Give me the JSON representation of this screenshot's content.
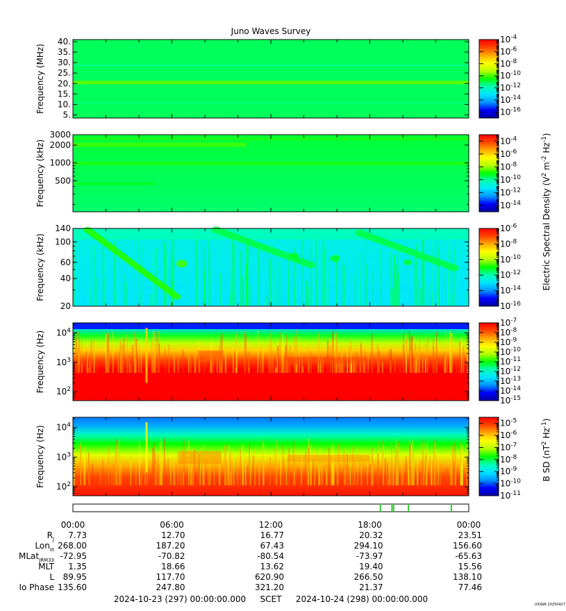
{
  "chart_data": {
    "type": "heatmap",
    "title": "Juno Waves Survey",
    "credit": "UIOWA 20250427",
    "time_range": {
      "start": "2024-10-23 (297) 00:00:00.000",
      "end": "2024-10-24 (298) 00:00:00.000",
      "scet_label": "SCET",
      "ticks": [
        "00:00",
        "06:00",
        "12:00",
        "18:00",
        "00:00"
      ]
    },
    "palette": [
      "#0000a0",
      "#0000ff",
      "#0096ff",
      "#00e6ff",
      "#00ffb4",
      "#00ff00",
      "#b4ff00",
      "#ffff00",
      "#ffaa00",
      "#ff4600",
      "#ff0000"
    ],
    "panels": [
      {
        "id": "p1",
        "ylabel": "Frequency (MHz)",
        "yscale": "linear",
        "ylim": [
          3.5,
          41
        ],
        "yticks": [
          {
            "label": "40.",
            "value": 40
          },
          {
            "label": "35.",
            "value": 35
          },
          {
            "label": "30.",
            "value": 30
          },
          {
            "label": "25.",
            "value": 25
          },
          {
            "label": "20.",
            "value": 20
          },
          {
            "label": "15.",
            "value": 15
          },
          {
            "label": "10.",
            "value": 10
          },
          {
            "label": "5.",
            "value": 5
          }
        ],
        "colorbar": {
          "min_exp": -17,
          "max_exp": -4,
          "ticks": [
            {
              "mant": "10",
              "exp": "-4",
              "e": -4
            },
            {
              "mant": "10",
              "exp": "-6",
              "e": -6
            },
            {
              "mant": "10",
              "exp": "-8",
              "e": -8
            },
            {
              "mant": "10",
              "exp": "-10",
              "e": -10
            },
            {
              "mant": "10",
              "exp": "-12",
              "e": -12
            },
            {
              "mant": "10",
              "exp": "-14",
              "e": -14
            },
            {
              "mant": "10",
              "exp": "-16",
              "e": -16
            }
          ]
        }
      },
      {
        "id": "p2",
        "ylabel": "Frequency (kHz)",
        "yscale": "log",
        "ylim": [
          150,
          3000
        ],
        "yticks": [
          {
            "label": "3000",
            "value": 3000
          },
          {
            "label": "2000",
            "value": 2000
          },
          {
            "label": "1000",
            "value": 1000
          },
          {
            "label": "500",
            "value": 500
          }
        ],
        "colorbar": {
          "min_exp": -15,
          "max_exp": -3,
          "ticks": [
            {
              "mant": "10",
              "exp": "-4",
              "e": -4
            },
            {
              "mant": "10",
              "exp": "-6",
              "e": -6
            },
            {
              "mant": "10",
              "exp": "-8",
              "e": -8
            },
            {
              "mant": "10",
              "exp": "-10",
              "e": -10
            },
            {
              "mant": "10",
              "exp": "-12",
              "e": -12
            },
            {
              "mant": "10",
              "exp": "-14",
              "e": -14
            }
          ]
        }
      },
      {
        "id": "p3",
        "ylabel": "Frequency (kHz)",
        "yscale": "log",
        "ylim": [
          20,
          140
        ],
        "yticks": [
          {
            "label": "140",
            "value": 140
          },
          {
            "label": "100",
            "value": 100
          },
          {
            "label": "60",
            "value": 60
          },
          {
            "label": "40",
            "value": 40
          },
          {
            "label": "20",
            "value": 20
          }
        ],
        "colorbar": {
          "min_exp": -16,
          "max_exp": -6,
          "ticks": [
            {
              "mant": "10",
              "exp": "-6",
              "e": -6
            },
            {
              "mant": "10",
              "exp": "-8",
              "e": -8
            },
            {
              "mant": "10",
              "exp": "-10",
              "e": -10
            },
            {
              "mant": "10",
              "exp": "-12",
              "e": -12
            },
            {
              "mant": "10",
              "exp": "-14",
              "e": -14
            },
            {
              "mant": "10",
              "exp": "-16",
              "e": -16
            }
          ]
        }
      },
      {
        "id": "p4",
        "ylabel": "Frequency (Hz)",
        "yscale": "log",
        "ylim": [
          50,
          22000
        ],
        "yticks": [
          {
            "mant": "10",
            "exp": "4",
            "value": 10000
          },
          {
            "mant": "10",
            "exp": "3",
            "value": 1000
          },
          {
            "mant": "10",
            "exp": "2",
            "value": 100
          }
        ],
        "colorbar": {
          "min_exp": -15,
          "max_exp": -7,
          "ticks": [
            {
              "mant": "10",
              "exp": "-7",
              "e": -7
            },
            {
              "mant": "10",
              "exp": "-8",
              "e": -8
            },
            {
              "mant": "10",
              "exp": "-9",
              "e": -9
            },
            {
              "mant": "10",
              "exp": "-10",
              "e": -10
            },
            {
              "mant": "10",
              "exp": "-11",
              "e": -11
            },
            {
              "mant": "10",
              "exp": "-12",
              "e": -12
            },
            {
              "mant": "10",
              "exp": "-13",
              "e": -13
            },
            {
              "mant": "10",
              "exp": "-14",
              "e": -14
            },
            {
              "mant": "10",
              "exp": "-15",
              "e": -15
            }
          ]
        }
      },
      {
        "id": "p5",
        "ylabel": "Frequency (Hz)",
        "yscale": "log",
        "ylim": [
          50,
          22000
        ],
        "yticks": [
          {
            "mant": "10",
            "exp": "4",
            "value": 10000
          },
          {
            "mant": "10",
            "exp": "3",
            "value": 1000
          },
          {
            "mant": "10",
            "exp": "2",
            "value": 100
          }
        ],
        "colorbar": {
          "min_exp": -11,
          "max_exp": -4.5,
          "ticks": [
            {
              "mant": "10",
              "exp": "-5",
              "e": -5
            },
            {
              "mant": "10",
              "exp": "-6",
              "e": -6
            },
            {
              "mant": "10",
              "exp": "-7",
              "e": -7
            },
            {
              "mant": "10",
              "exp": "-8",
              "e": -8
            },
            {
              "mant": "10",
              "exp": "-9",
              "e": -9
            },
            {
              "mant": "10",
              "exp": "-10",
              "e": -10
            },
            {
              "mant": "10",
              "exp": "-11",
              "e": -11
            }
          ]
        }
      }
    ],
    "colorbar_label_esd": {
      "text": "Electric Spectral Density (V",
      "sup1": "2",
      "mid": " m",
      "sup2": "-2",
      "mid2": " Hz",
      "sup3": "-1",
      "end": ")"
    },
    "colorbar_label_bsd": {
      "text": "B SD (nT",
      "sup1": "2",
      "mid": " Hz",
      "sup2": "-1",
      "end": ")"
    },
    "mode_strip_marks_hours": [
      18.6,
      19.3,
      19.4,
      20.3,
      22.9
    ],
    "ephemeris": [
      {
        "label": "R",
        "sub": "J",
        "values": [
          "7.73",
          "12.70",
          "16.77",
          "20.32",
          "23.51"
        ]
      },
      {
        "label": "Lon",
        "sub": "III",
        "values": [
          "268.00",
          "187.20",
          "67.43",
          "294.10",
          "156.60"
        ]
      },
      {
        "label": "MLat",
        "sub": "JRM33",
        "values": [
          "-72.95",
          "-70.82",
          "-80.54",
          "-73.97",
          "-65.63"
        ]
      },
      {
        "label": "MLT",
        "sub": "",
        "values": [
          "1.35",
          "18.66",
          "13.62",
          "19.40",
          "15.56"
        ]
      },
      {
        "label": "L",
        "sub": "",
        "values": [
          "89.95",
          "117.70",
          "620.90",
          "266.50",
          "138.10"
        ]
      },
      {
        "label": "Io Phase",
        "sub": "",
        "values": [
          "135.60",
          "247.80",
          "321.20",
          "21.37",
          "77.46"
        ]
      }
    ]
  }
}
